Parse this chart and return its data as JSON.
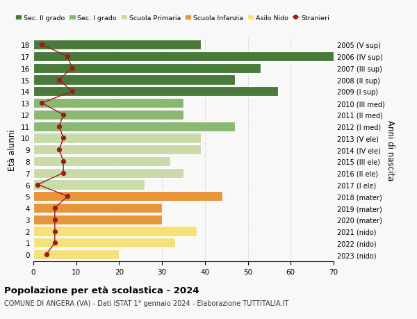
{
  "ages": [
    0,
    1,
    2,
    3,
    4,
    5,
    6,
    7,
    8,
    9,
    10,
    11,
    12,
    13,
    14,
    15,
    16,
    17,
    18
  ],
  "bar_values": [
    20,
    33,
    38,
    30,
    30,
    44,
    26,
    35,
    32,
    39,
    39,
    47,
    35,
    35,
    57,
    47,
    53,
    70,
    39
  ],
  "bar_colors": [
    "#f5e07a",
    "#f5e07a",
    "#f5e07a",
    "#e8953a",
    "#e8953a",
    "#e8953a",
    "#c8dba8",
    "#c8dba8",
    "#c8dba8",
    "#c8dba8",
    "#c8dba8",
    "#8ab870",
    "#8ab870",
    "#8ab870",
    "#4a7a3a",
    "#4a7a3a",
    "#4a7a3a",
    "#4a7a3a",
    "#4a7a3a"
  ],
  "stranieri_values": [
    3,
    5,
    5,
    5,
    5,
    8,
    1,
    7,
    7,
    6,
    7,
    6,
    7,
    2,
    9,
    6,
    9,
    8,
    2
  ],
  "right_labels": [
    "2023 (nido)",
    "2022 (nido)",
    "2021 (nido)",
    "2020 (mater)",
    "2019 (mater)",
    "2018 (mater)",
    "2017 (I ele)",
    "2016 (II ele)",
    "2015 (III ele)",
    "2014 (IV ele)",
    "2013 (V ele)",
    "2012 (I med)",
    "2011 (II med)",
    "2010 (III med)",
    "2009 (I sup)",
    "2008 (II sup)",
    "2007 (III sup)",
    "2006 (IV sup)",
    "2005 (V sup)"
  ],
  "legend_labels": [
    "Sec. II grado",
    "Sec. I grado",
    "Scuola Primaria",
    "Scuola Infanzia",
    "Asilo Nido",
    "Stranieri"
  ],
  "legend_colors": [
    "#4a7a3a",
    "#8ab870",
    "#c8dba8",
    "#e8953a",
    "#f5e07a",
    "#9b1c1c"
  ],
  "ylabel": "Età alunni",
  "right_ylabel": "Anni di nascita",
  "title": "Popolazione per età scolastica - 2024",
  "subtitle": "COMUNE DI ANGERA (VA) - Dati ISTAT 1° gennaio 2024 - Elaborazione TUTTITALIA.IT",
  "xlim": [
    0,
    70
  ],
  "xticks": [
    0,
    10,
    20,
    30,
    40,
    50,
    60,
    70
  ],
  "bg_color": "#f8f8f8",
  "bar_edge_color": "white",
  "grid_color": "#cccccc"
}
